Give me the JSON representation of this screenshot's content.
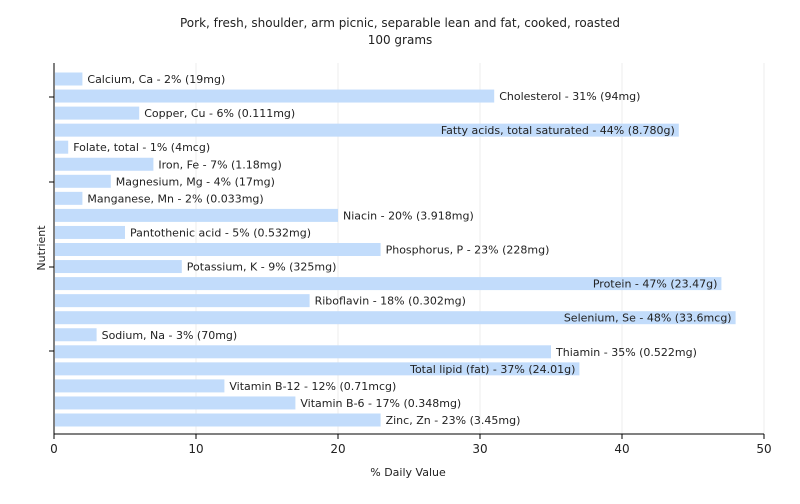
{
  "chart_data": {
    "type": "bar",
    "orientation": "horizontal",
    "title": "Pork, fresh, shoulder, arm picnic, separable lean and fat, cooked, roasted",
    "subtitle": "100 grams",
    "xlabel": "% Daily Value",
    "ylabel": "Nutrient",
    "xlim": [
      0,
      50
    ],
    "xticks": [
      0,
      10,
      20,
      30,
      40,
      50
    ],
    "grid": true,
    "bar_color": "#c2dcfb",
    "categories": [
      "Calcium, Ca",
      "Cholesterol",
      "Copper, Cu",
      "Fatty acids, total saturated",
      "Folate, total",
      "Iron, Fe",
      "Magnesium, Mg",
      "Manganese, Mn",
      "Niacin",
      "Pantothenic acid",
      "Phosphorus, P",
      "Potassium, K",
      "Protein",
      "Riboflavin",
      "Selenium, Se",
      "Sodium, Na",
      "Thiamin",
      "Total lipid (fat)",
      "Vitamin B-12",
      "Vitamin B-6",
      "Zinc, Zn"
    ],
    "values": [
      2,
      31,
      6,
      44,
      1,
      7,
      4,
      2,
      20,
      5,
      23,
      9,
      47,
      18,
      48,
      3,
      35,
      37,
      12,
      17,
      23
    ],
    "labels": [
      "Calcium, Ca - 2% (19mg)",
      "Cholesterol - 31% (94mg)",
      "Copper, Cu - 6% (0.111mg)",
      "Fatty acids, total saturated - 44% (8.780g)",
      "Folate, total - 1% (4mcg)",
      "Iron, Fe - 7% (1.18mg)",
      "Magnesium, Mg - 4% (17mg)",
      "Manganese, Mn - 2% (0.033mg)",
      "Niacin - 20% (3.918mg)",
      "Pantothenic acid - 5% (0.532mg)",
      "Phosphorus, P - 23% (228mg)",
      "Potassium, K - 9% (325mg)",
      "Protein - 47% (23.47g)",
      "Riboflavin - 18% (0.302mg)",
      "Selenium, Se - 48% (33.6mcg)",
      "Sodium, Na - 3% (70mg)",
      "Thiamin - 35% (0.522mg)",
      "Total lipid (fat) - 37% (24.01g)",
      "Vitamin B-12 - 12% (0.71mcg)",
      "Vitamin B-6 - 17% (0.348mg)",
      "Zinc, Zn - 23% (3.45mg)"
    ]
  }
}
